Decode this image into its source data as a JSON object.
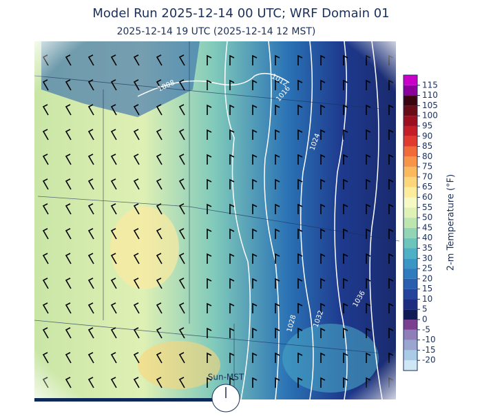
{
  "title": "Model Run 2025-12-14 00 UTC; WRF Domain 01",
  "subtitle": "2025-12-14 19 UTC  (2025-12-14 12 MST)",
  "contour_labels": [
    "1008",
    "1012",
    "1016",
    "1024",
    "1028",
    "1032",
    "1036"
  ],
  "clock_label": "Sun-MST",
  "colorbar": {
    "label": "2-m Temperature (°F)",
    "range": [
      -25,
      120
    ],
    "ticks": [
      115,
      110,
      105,
      100,
      95,
      90,
      85,
      80,
      75,
      70,
      65,
      60,
      55,
      50,
      45,
      40,
      35,
      30,
      25,
      20,
      15,
      10,
      5,
      0,
      -5,
      -10,
      -15,
      -20
    ],
    "colors": [
      "#cfe6f5",
      "#a9cbe6",
      "#9aa6cf",
      "#8f7fb8",
      "#7a3f8f",
      "#101a55",
      "#1c2d80",
      "#23439d",
      "#2a5fb0",
      "#2f7bbd",
      "#3a96c3",
      "#4eb0c4",
      "#6cc4bb",
      "#93d4b4",
      "#bde5b0",
      "#dff1b5",
      "#f6f9c4",
      "#fcec9c",
      "#fcd67a",
      "#fbb95e",
      "#f79448",
      "#f06a3a",
      "#e03b2e",
      "#c41e26",
      "#9b0f1f",
      "#6a0b18",
      "#3a0510",
      "#8b009b",
      "#c800c8"
    ]
  }
}
